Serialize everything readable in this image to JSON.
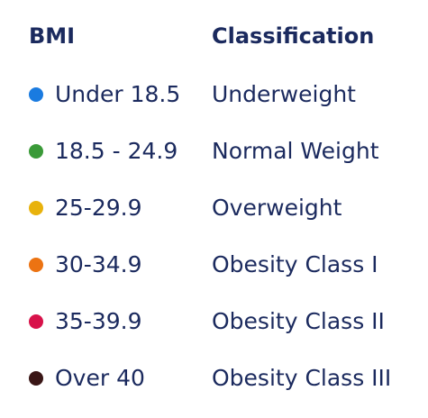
{
  "header": {
    "bmi_label": "BMI",
    "classification_label": "Classification"
  },
  "rows": [
    {
      "range": "Under 18.5",
      "classification": "Underweight",
      "color": "#1a7be0"
    },
    {
      "range": "18.5 - 24.9",
      "classification": "Normal Weight",
      "color": "#3a9a38"
    },
    {
      "range": "25-29.9",
      "classification": "Overweight",
      "color": "#e8b20c"
    },
    {
      "range": "30-34.9",
      "classification": "Obesity Class I",
      "color": "#ec7312"
    },
    {
      "range": "35-39.9",
      "classification": "Obesity Class II",
      "color": "#d8124a"
    },
    {
      "range": "Over 40",
      "classification": "Obesity Class III",
      "color": "#3a1616"
    }
  ]
}
